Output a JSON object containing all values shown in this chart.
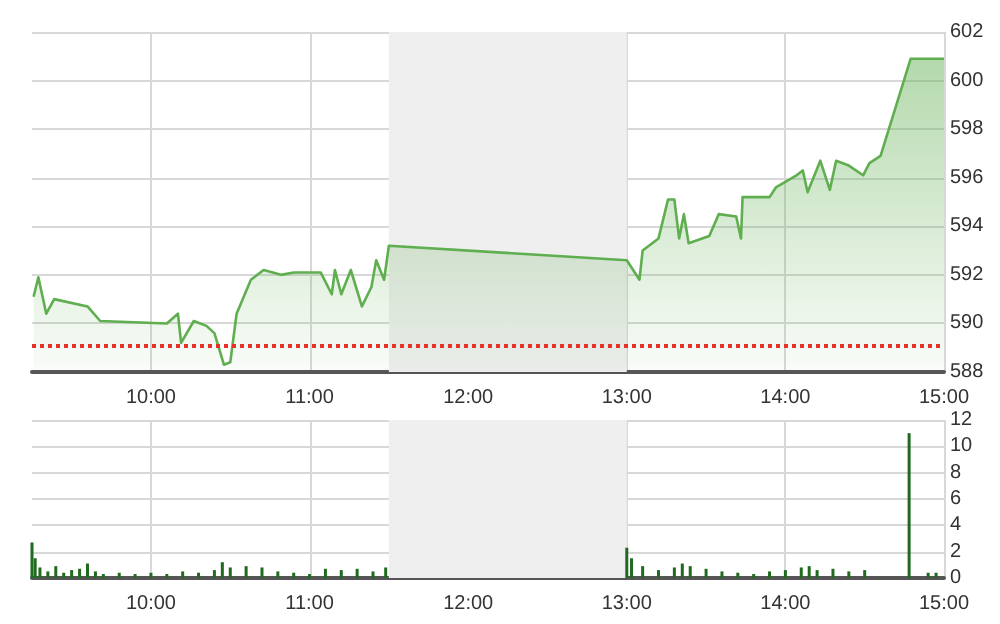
{
  "chart_data": [
    {
      "type": "area",
      "x": [
        9.26,
        9.29,
        9.34,
        9.39,
        9.6,
        9.68,
        10.1,
        10.17,
        10.19,
        10.27,
        10.35,
        10.4,
        10.46,
        10.5,
        10.54,
        10.63,
        10.71,
        10.82,
        10.9,
        11.07,
        11.14,
        11.16,
        11.2,
        11.26,
        11.33,
        11.39,
        11.42,
        11.47,
        11.5,
        13.0,
        13.08,
        13.1,
        13.2,
        13.26,
        13.3,
        13.33,
        13.36,
        13.39,
        13.52,
        13.58,
        13.69,
        13.72,
        13.73,
        13.9,
        13.94,
        14.07,
        14.11,
        14.14,
        14.22,
        14.28,
        14.32,
        14.4,
        14.49,
        14.53,
        14.6,
        14.79,
        15.0
      ],
      "values": [
        591.1,
        591.9,
        590.4,
        591.0,
        590.7,
        590.1,
        590.0,
        590.4,
        589.2,
        590.1,
        589.9,
        589.6,
        588.3,
        588.4,
        590.4,
        591.8,
        592.2,
        592.0,
        592.1,
        592.1,
        591.2,
        592.2,
        591.2,
        592.2,
        590.7,
        591.5,
        592.6,
        591.8,
        593.2,
        592.6,
        591.8,
        593.0,
        593.5,
        595.1,
        595.1,
        593.5,
        594.5,
        593.3,
        593.6,
        594.5,
        594.4,
        593.5,
        595.2,
        595.2,
        595.6,
        596.1,
        596.3,
        595.4,
        596.7,
        595.5,
        596.7,
        596.5,
        596.1,
        596.6,
        596.9,
        600.9,
        600.9
      ],
      "color": "#5fae4f",
      "xlim": [
        9.25,
        15
      ],
      "xticks": [
        {
          "value": 10,
          "label": "10:00"
        },
        {
          "value": 11,
          "label": "11:00"
        },
        {
          "value": 12,
          "label": "12:00"
        },
        {
          "value": 13,
          "label": "13:00"
        },
        {
          "value": 14,
          "label": "14:00"
        },
        {
          "value": 15,
          "label": "15:00"
        }
      ],
      "ylim": [
        588,
        602
      ],
      "yticks": [
        588,
        590,
        592,
        594,
        596,
        598,
        600,
        602
      ],
      "grid": true,
      "marker": "none",
      "ref_lines": [
        {
          "axis": "y",
          "value": 589.1,
          "color": "#e8302a",
          "line_style": "dotted"
        }
      ],
      "bands": [
        {
          "axis": "x",
          "from": 11.5,
          "to": 13,
          "color": "#efefef"
        }
      ]
    },
    {
      "type": "bar",
      "x": [
        9.25,
        9.27,
        9.3,
        9.35,
        9.4,
        9.45,
        9.5,
        9.55,
        9.6,
        9.65,
        9.7,
        9.8,
        9.9,
        10.0,
        10.1,
        10.2,
        10.3,
        10.4,
        10.45,
        10.5,
        10.6,
        10.7,
        10.8,
        10.9,
        11.0,
        11.1,
        11.2,
        11.3,
        11.4,
        11.48,
        13.0,
        13.03,
        13.1,
        13.2,
        13.3,
        13.35,
        13.4,
        13.5,
        13.6,
        13.7,
        13.8,
        13.9,
        14.0,
        14.1,
        14.15,
        14.2,
        14.3,
        14.4,
        14.5,
        14.78,
        14.9,
        14.95
      ],
      "values": [
        2.7,
        1.5,
        0.8,
        0.5,
        0.9,
        0.4,
        0.6,
        0.7,
        1.1,
        0.5,
        0.3,
        0.4,
        0.3,
        0.4,
        0.3,
        0.5,
        0.4,
        0.6,
        1.2,
        0.8,
        0.9,
        0.8,
        0.5,
        0.4,
        0.3,
        0.7,
        0.6,
        0.7,
        0.5,
        0.8,
        2.3,
        1.5,
        0.9,
        0.6,
        0.8,
        1.1,
        0.9,
        0.7,
        0.5,
        0.4,
        0.3,
        0.5,
        0.6,
        0.8,
        0.9,
        0.6,
        0.7,
        0.5,
        0.6,
        11,
        0.4,
        0.4
      ],
      "color": "#1f6a1f",
      "xlim": [
        9.25,
        15
      ],
      "xticks": [
        {
          "value": 10,
          "label": "10:00"
        },
        {
          "value": 11,
          "label": "11:00"
        },
        {
          "value": 12,
          "label": "12:00"
        },
        {
          "value": 13,
          "label": "13:00"
        },
        {
          "value": 14,
          "label": "14:00"
        },
        {
          "value": 15,
          "label": "15:00"
        }
      ],
      "ylim": [
        0,
        12
      ],
      "yticks": [
        0,
        2,
        4,
        6,
        8,
        10,
        12
      ],
      "grid": true,
      "bands": [
        {
          "axis": "x",
          "from": 11.5,
          "to": 13,
          "color": "#efefef"
        }
      ]
    }
  ]
}
